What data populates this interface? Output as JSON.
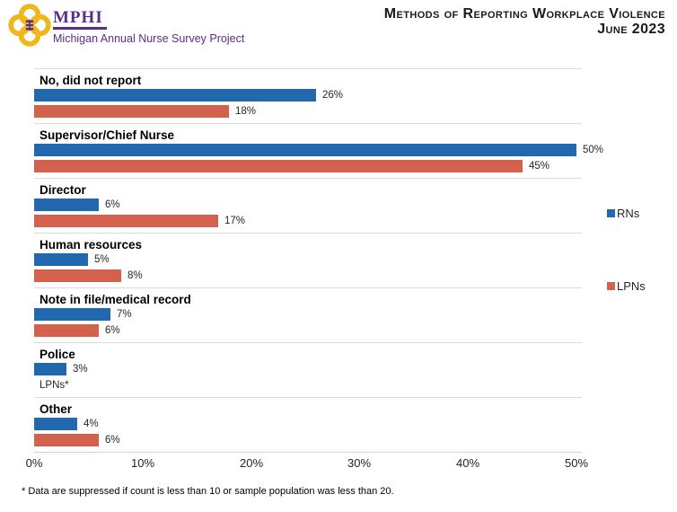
{
  "header": {
    "logo_org": "MPHI",
    "logo_project": "Michigan Annual Nurse Survey Project",
    "title_line1": "Methods of Reporting Workplace Violence",
    "title_line2": "June 2023"
  },
  "legend": {
    "rn_label": "RNs",
    "lpn_label": "LPNs"
  },
  "chart_data": {
    "type": "bar",
    "orientation": "horizontal",
    "title": "Methods of Reporting Workplace Violence",
    "subtitle": "June 2023",
    "categories": [
      "No, did not report",
      "Supervisor/Chief Nurse",
      "Director",
      "Human resources",
      "Note in file/medical record",
      "Police",
      "Other"
    ],
    "series": [
      {
        "name": "RNs",
        "color": "#2268AE",
        "values": [
          26,
          50,
          6,
          5,
          7,
          3,
          4
        ],
        "labels": [
          "26%",
          "50%",
          "6%",
          "5%",
          "7%",
          "3%",
          "4%"
        ]
      },
      {
        "name": "LPNs",
        "color": "#D4604E",
        "values": [
          18,
          45,
          17,
          8,
          6,
          null,
          6
        ],
        "labels": [
          "18%",
          "45%",
          "17%",
          "8%",
          "6%",
          "LPNs*",
          "6%"
        ]
      }
    ],
    "xlim": [
      0,
      50
    ],
    "x_ticks": [
      "0%",
      "10%",
      "20%",
      "30%",
      "40%",
      "50%"
    ],
    "grid": "horizontal category separators only",
    "legend_position": "right"
  },
  "footnote": "* Data are suppressed if count is less than 10 or sample population was less than 20.",
  "colors": {
    "rn": "#2268AE",
    "lpn": "#D4604E",
    "separator": "#D9D9D9",
    "brand_purple": "#5B2C8E",
    "brand_gold": "#EFB71C",
    "title_text": "#1A1A1A"
  }
}
